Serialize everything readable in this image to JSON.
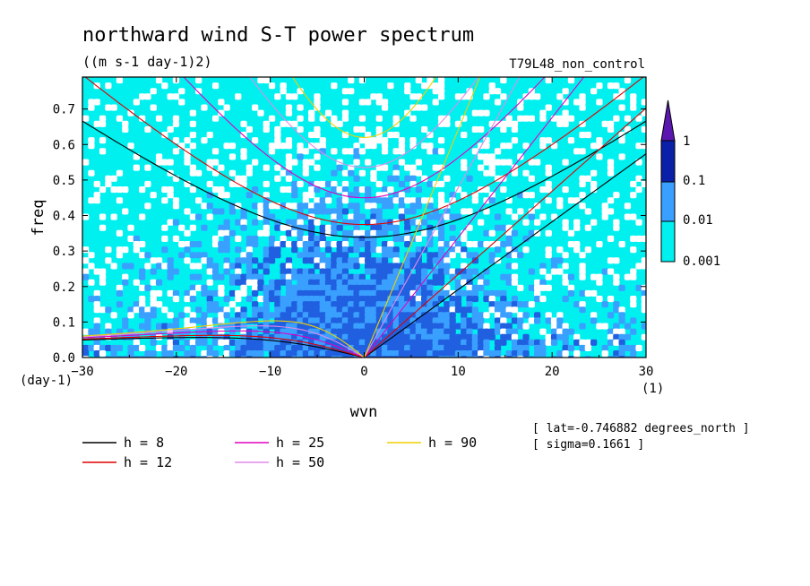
{
  "title": "northward wind S-T power spectrum",
  "units": "((m s-1 day-1)2)",
  "experiment": "T79L48_non_control",
  "ylabel": "freq",
  "xlabel": "wvn",
  "yunit": "(day-1)",
  "xunit": "(1)",
  "info": [
    "[ lat=-0.746882 degrees_north ]",
    "[ sigma=0.1661 ]"
  ],
  "colorbar": {
    "labels": [
      "1",
      "0.1",
      "0.01",
      "0.001"
    ],
    "colors": [
      "#0a20a8",
      "#2060e0",
      "#3aa0ff",
      "#00f0f0",
      "#5a18b0"
    ]
  },
  "chart_data": {
    "type": "heatmap",
    "title": "northward wind S-T power spectrum",
    "xlabel": "wvn",
    "ylabel": "freq",
    "xlim": [
      -30,
      30
    ],
    "ylim": [
      0,
      0.79
    ],
    "xticks": [
      -30,
      -20,
      -10,
      0,
      10,
      20,
      30
    ],
    "yticks": [
      0.0,
      0.1,
      0.2,
      0.3,
      0.4,
      0.5,
      0.6,
      0.7
    ],
    "levels": [
      0.001,
      0.01,
      0.1,
      1
    ],
    "grid": false,
    "series": [
      {
        "name": "h =  8",
        "color": "#000000",
        "h": 8
      },
      {
        "name": "h = 12",
        "color": "#e00000",
        "h": 12
      },
      {
        "name": "h = 25",
        "color": "#e000c0",
        "h": 25
      },
      {
        "name": "h = 50",
        "color": "#e08ae8",
        "h": 50
      },
      {
        "name": "h = 90",
        "color": "#f0d000",
        "h": 90
      }
    ]
  }
}
